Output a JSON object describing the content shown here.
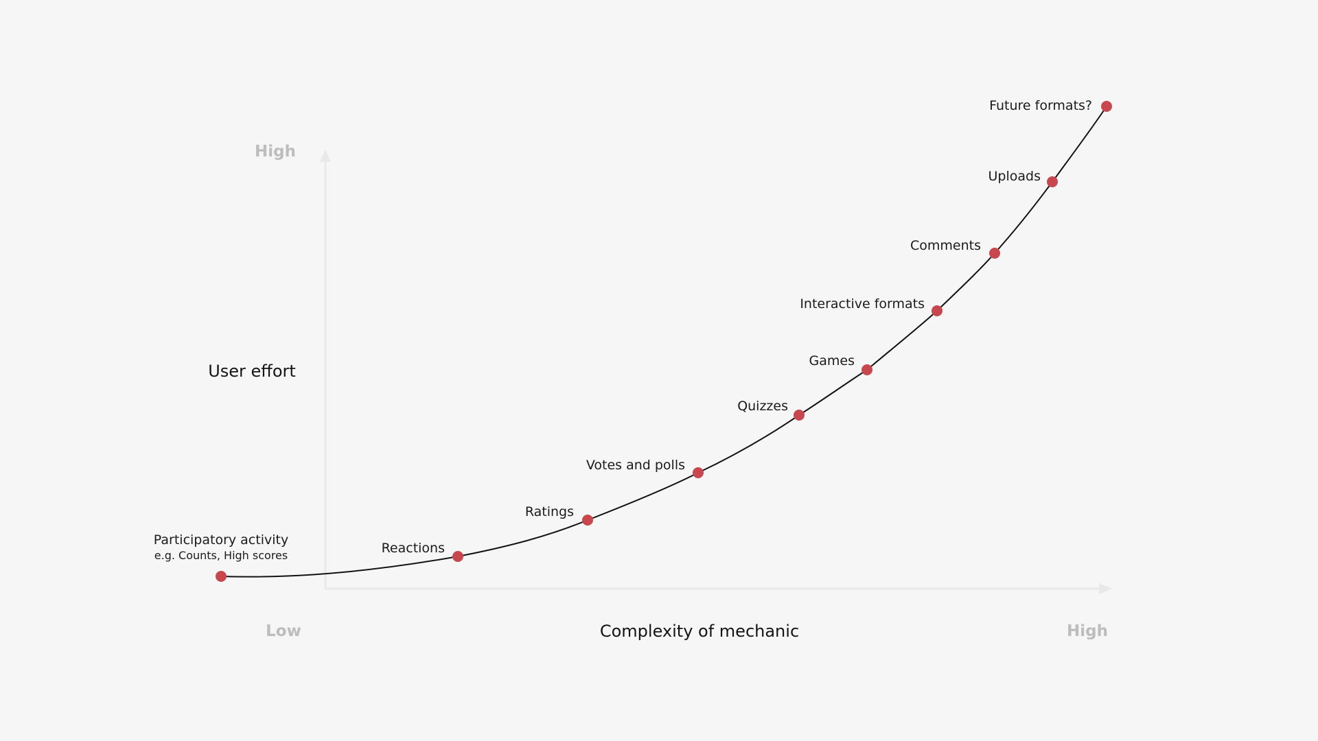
{
  "axes": {
    "y_high": "High",
    "y_title": "User effort",
    "x_low": "Low",
    "x_title": "Complexity of mechanic",
    "x_high": "High"
  },
  "points": [
    {
      "label": "Participatory activity",
      "sublabel": "e.g. Counts, High scores"
    },
    {
      "label": "Reactions"
    },
    {
      "label": "Ratings"
    },
    {
      "label": "Votes and polls"
    },
    {
      "label": "Quizzes"
    },
    {
      "label": "Games"
    },
    {
      "label": "Interactive formats"
    },
    {
      "label": "Comments"
    },
    {
      "label": "Uploads"
    },
    {
      "label": "Future formats?"
    }
  ],
  "colors": {
    "point": "#c8474e",
    "curve": "#111111",
    "axis": "#e9e9e9",
    "axis_label": "#bdbdbd",
    "background": "#f6f6f6"
  }
}
